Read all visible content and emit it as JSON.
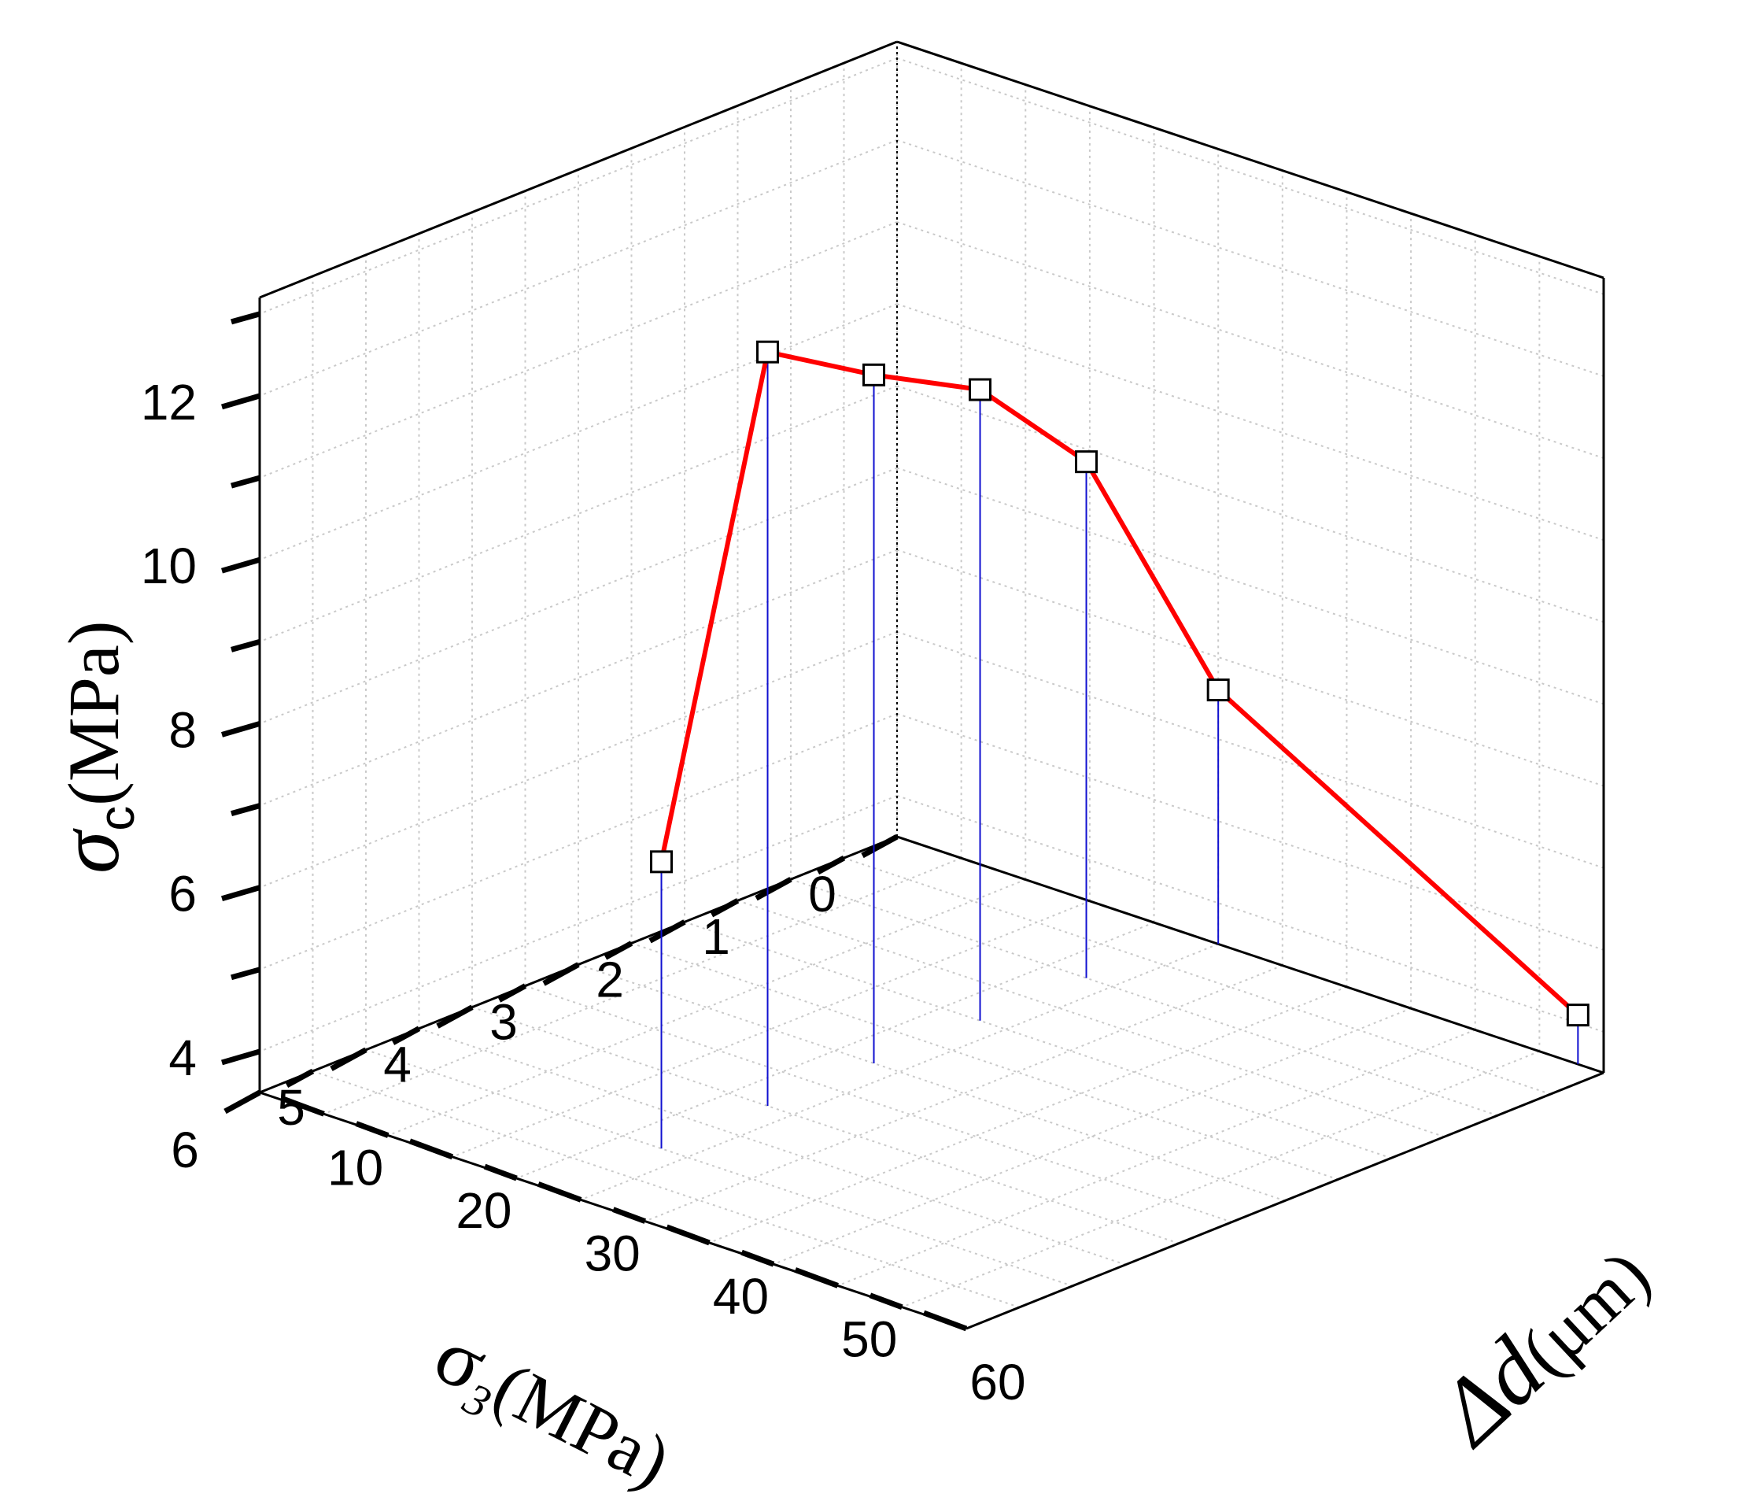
{
  "chart_data": {
    "type": "line3d",
    "title": "",
    "axes": {
      "x": {
        "label_symbol": "σ",
        "label_sub": "3",
        "label_unit": "(MPa)",
        "ticks": [
          "0",
          "1",
          "2",
          "3",
          "4",
          "5",
          "6"
        ],
        "range": [
          0,
          6
        ]
      },
      "y": {
        "label_symbol": "Δd",
        "label_unit": "(μm)",
        "ticks": [
          "10",
          "20",
          "30",
          "40",
          "50",
          "60"
        ],
        "range": [
          5,
          60
        ]
      },
      "z": {
        "label_symbol": "σ",
        "label_sub": "c",
        "label_unit": "(MPa)",
        "ticks": [
          "4",
          "6",
          "8",
          "10",
          "12"
        ],
        "range": [
          3.5,
          13.2
        ]
      }
    },
    "grid": true,
    "series": [
      {
        "color": "#ff0000",
        "marker": "square",
        "points": [
          {
            "x": 0,
            "y": 58,
            "z": 4.1
          },
          {
            "x": 0,
            "y": 30,
            "z": 6.6
          },
          {
            "x": 1,
            "y": 28,
            "z": 9.8
          },
          {
            "x": 2,
            "y": 28,
            "z": 11.2
          },
          {
            "x": 3,
            "y": 28,
            "z": 11.9
          },
          {
            "x": 4,
            "y": 28,
            "z": 12.7
          },
          {
            "x": 5,
            "y": 28,
            "z": 7.0
          }
        ]
      }
    ]
  }
}
